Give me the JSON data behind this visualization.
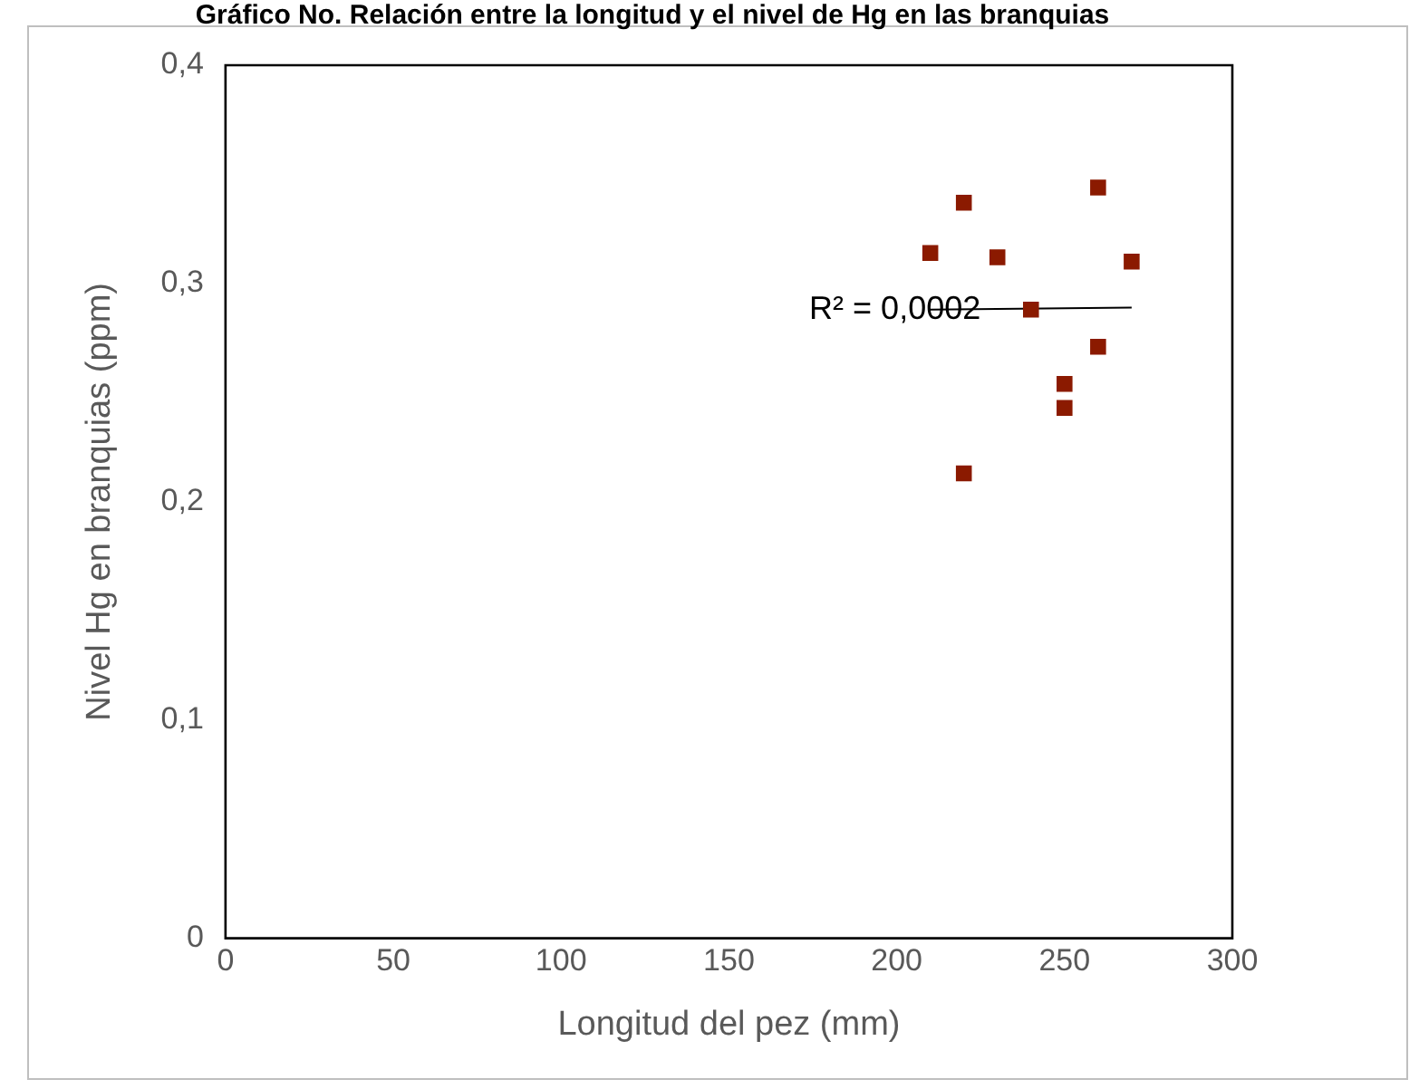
{
  "chart_data": {
    "type": "scatter",
    "title": "Gráfico No. Relación entre la longitud y el nivel de Hg en las branquias",
    "xlabel": "Longitud del pez (mm)",
    "ylabel": "Nivel Hg en branquias (ppm)",
    "series": [
      {
        "color": "#8b1a00",
        "marker": "square",
        "x": [
          210,
          220,
          230,
          240,
          260,
          270,
          260,
          250,
          250,
          220
        ],
        "values": [
          0.314,
          0.337,
          0.312,
          0.288,
          0.344,
          0.31,
          0.271,
          0.254,
          0.243,
          0.213
        ]
      },
      {
        "type": "line",
        "color": "#000000",
        "marker": "none",
        "x": [
          210,
          270
        ],
        "values": [
          0.288,
          0.289
        ]
      }
    ],
    "annotations": [
      {
        "text": "R² = 0,0002",
        "x": 225,
        "y": 0.288
      }
    ],
    "xlim": [
      0,
      300
    ],
    "xticks": [
      0,
      50,
      100,
      150,
      200,
      250,
      300
    ],
    "ylim": [
      0,
      0.4
    ],
    "yticks": [
      {
        "value": 0,
        "label": "0"
      },
      {
        "value": 0.1,
        "label": "0,1"
      },
      {
        "value": 0.2,
        "label": "0,2"
      },
      {
        "value": 0.3,
        "label": "0,3"
      },
      {
        "value": 0.4,
        "label": "0,4"
      }
    ],
    "grid": false,
    "legend": false
  }
}
